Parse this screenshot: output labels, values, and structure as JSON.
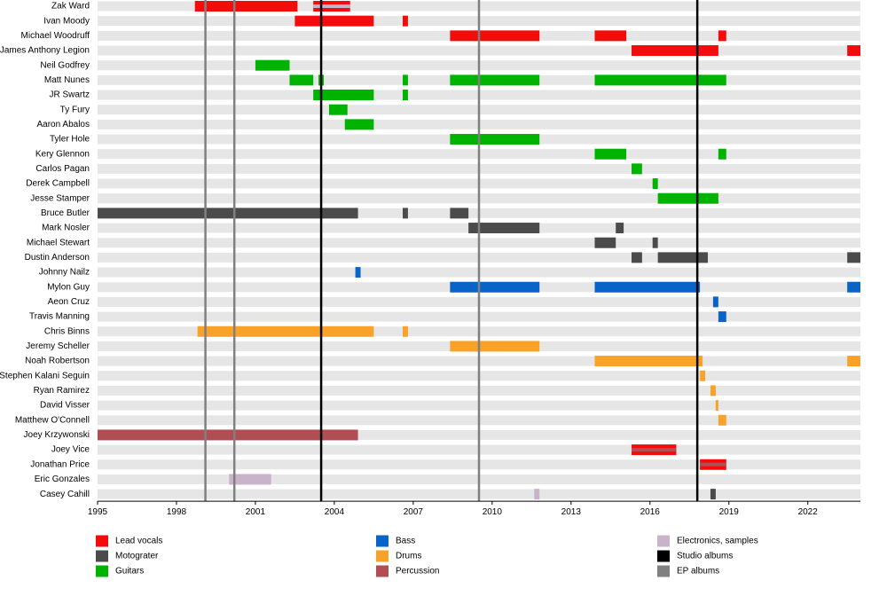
{
  "chart_data": {
    "type": "timeline",
    "categories": [
      "Zak Ward",
      "Ivan Moody",
      "Michael Woodruff",
      "James Anthony Legion",
      "Neil Godfrey",
      "Matt Nunes",
      "JR Swartz",
      "Ty Fury",
      "Aaron Abalos",
      "Tyler Hole",
      "Kery Glennon",
      "Carlos Pagan",
      "Derek Campbell",
      "Jesse Stamper",
      "Bruce Butler",
      "Mark Nosler",
      "Michael Stewart",
      "Dustin Anderson",
      "Johnny Nailz",
      "Mylon Guy",
      "Aeon Cruz",
      "Travis Manning",
      "Chris Binns",
      "Jeremy Scheller",
      "Noah Robertson",
      "Stephen Kalani Seguin",
      "Ryan Ramirez",
      "David Visser",
      "Matthew O'Connell",
      "Joey Krzywonski",
      "Joey Vice",
      "Jonathan Price",
      "Eric Gonzales",
      "Casey Cahill"
    ],
    "series": [
      {
        "name": "Lead vocals",
        "color": "#f20c0c",
        "values": [
          [
            [
              1998.7,
              2002.6
            ],
            [
              2003.2,
              2004.6
            ]
          ],
          [
            [
              2002.5,
              2005.5
            ],
            [
              2006.6,
              2006.8
            ]
          ],
          [
            [
              2008.4,
              2011.8
            ],
            [
              2013.9,
              2015.1
            ],
            [
              2018.6,
              2018.9
            ]
          ],
          [
            [
              2015.3,
              2018.6
            ],
            [
              2023.5,
              2024
            ]
          ],
          [],
          [],
          [],
          [],
          [],
          [],
          [],
          [],
          [],
          [],
          [],
          [],
          [],
          [],
          [],
          [],
          [],
          [],
          [],
          [],
          [],
          [],
          [],
          [],
          [],
          [],
          [
            [
              2015.3,
              2017.0
            ]
          ],
          [
            [
              2017.9,
              2018.9
            ]
          ],
          [],
          []
        ]
      },
      {
        "name": "Motograter",
        "color": "#4b4b4b",
        "values": [
          [],
          [],
          [],
          [],
          [],
          [],
          [],
          [],
          [],
          [],
          [],
          [],
          [],
          [],
          [
            [
              1995,
              2004.9
            ],
            [
              2006.6,
              2006.8
            ],
            [
              2008.4,
              2009.1
            ]
          ],
          [
            [
              2009.1,
              2011.8
            ],
            [
              2014.7,
              2015.0
            ]
          ],
          [
            [
              2013.9,
              2014.7
            ],
            [
              2016.1,
              2016.3
            ]
          ],
          [
            [
              2015.3,
              2015.7
            ],
            [
              2016.3,
              2018.2
            ],
            [
              2023.5,
              2024
            ]
          ],
          [],
          [],
          [],
          [],
          [],
          [],
          [],
          [],
          [],
          [],
          [],
          [],
          [],
          [],
          [],
          [
            [
              2018.3,
              2018.5
            ]
          ]
        ]
      },
      {
        "name": "Guitars",
        "color": "#00b300",
        "values": [
          [],
          [],
          [],
          [],
          [
            [
              2001.0,
              2002.3
            ]
          ],
          [
            [
              2002.3,
              2003.2
            ],
            [
              2003.4,
              2003.6
            ],
            [
              2006.6,
              2006.8
            ],
            [
              2008.4,
              2011.8
            ],
            [
              2013.9,
              2018.9
            ]
          ],
          [
            [
              2003.2,
              2005.5
            ],
            [
              2006.6,
              2006.8
            ]
          ],
          [
            [
              2003.8,
              2004.5
            ]
          ],
          [
            [
              2004.4,
              2005.5
            ]
          ],
          [
            [
              2008.4,
              2011.8
            ]
          ],
          [
            [
              2013.9,
              2015.1
            ],
            [
              2018.6,
              2018.9
            ]
          ],
          [
            [
              2015.3,
              2015.7
            ]
          ],
          [
            [
              2016.1,
              2016.3
            ]
          ],
          [
            [
              2016.3,
              2018.6
            ]
          ],
          [],
          [],
          [],
          [],
          [],
          [],
          [],
          [],
          [],
          [],
          [],
          [],
          [],
          [],
          [],
          [],
          [],
          [],
          [],
          []
        ]
      },
      {
        "name": "Bass",
        "color": "#0a64c8",
        "values": [
          [],
          [],
          [],
          [],
          [],
          [],
          [],
          [],
          [],
          [],
          [],
          [],
          [],
          [],
          [],
          [],
          [],
          [],
          [
            [
              2004.8,
              2005.0
            ]
          ],
          [
            [
              2008.4,
              2011.8
            ],
            [
              2013.9,
              2017.9
            ],
            [
              2023.5,
              2024
            ]
          ],
          [
            [
              2018.4,
              2018.6
            ]
          ],
          [
            [
              2018.6,
              2018.9
            ]
          ],
          [],
          [],
          [],
          [],
          [],
          [],
          [],
          [],
          [],
          [],
          [],
          []
        ]
      },
      {
        "name": "Drums",
        "color": "#f8a22a",
        "values": [
          [],
          [],
          [],
          [],
          [],
          [],
          [],
          [],
          [],
          [],
          [],
          [],
          [],
          [],
          [],
          [],
          [],
          [],
          [],
          [],
          [],
          [],
          [
            [
              1998.8,
              2005.5
            ],
            [
              2006.6,
              2006.8
            ]
          ],
          [
            [
              2008.4,
              2011.8
            ]
          ],
          [
            [
              2013.9,
              2018.0
            ],
            [
              2023.5,
              2024
            ]
          ],
          [
            [
              2017.9,
              2018.1
            ]
          ],
          [
            [
              2018.3,
              2018.5
            ]
          ],
          [
            [
              2018.5,
              2018.6
            ]
          ],
          [
            [
              2018.6,
              2018.9
            ]
          ],
          [],
          [],
          [],
          [],
          []
        ]
      },
      {
        "name": "Percussion",
        "color": "#b04e54",
        "values": [
          [],
          [],
          [],
          [],
          [],
          [],
          [],
          [],
          [],
          [],
          [],
          [],
          [],
          [],
          [],
          [],
          [],
          [],
          [],
          [],
          [],
          [],
          [],
          [],
          [],
          [],
          [],
          [],
          [],
          [
            [
              1995,
              2004.9
            ]
          ],
          [
            [
              2015.3,
              2017.0
            ]
          ],
          [
            [
              2017.9,
              2018.9
            ]
          ],
          [],
          []
        ]
      },
      {
        "name": "Electronics, samples",
        "color": "#c9b3cb",
        "values": [
          [
            [
              2003.2,
              2004.6
            ]
          ],
          [],
          [],
          [],
          [],
          [],
          [],
          [],
          [],
          [],
          [],
          [],
          [],
          [],
          [],
          [],
          [],
          [],
          [],
          [],
          [],
          [],
          [],
          [],
          [],
          [],
          [],
          [],
          [],
          [],
          [],
          [],
          [
            [
              2000.0,
              2001.6
            ]
          ],
          [
            [
              2011.6,
              2011.8
            ]
          ]
        ]
      }
    ],
    "markers": [
      {
        "name": "Studio albums",
        "color": "#000000",
        "values": [
          2003.5,
          2017.8
        ]
      },
      {
        "name": "EP albums",
        "color": "#808080",
        "values": [
          1999.1,
          2000.2,
          2009.5
        ]
      }
    ],
    "xlim": [
      1995,
      2024
    ],
    "xticks": [
      1995,
      1998,
      2001,
      2004,
      2007,
      2010,
      2013,
      2016,
      2019,
      2022
    ]
  }
}
